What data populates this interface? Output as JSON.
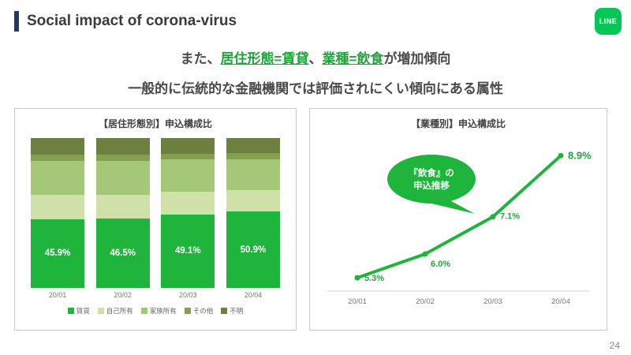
{
  "header": {
    "title": "Social impact of corona-virus",
    "logo_text": "LINE"
  },
  "subtitle": {
    "line1_parts": [
      {
        "text": "また、"
      },
      {
        "text": "居住形態=賃貸"
      },
      {
        "text": "、"
      },
      {
        "text": "業種=飲食"
      },
      {
        "text": "が増加傾向"
      }
    ],
    "line2": "一般的に伝統的な金融機関では評価されにくい傾向にある属性"
  },
  "colors": {
    "accent_navy": "#203864",
    "brand_green": "#06c755",
    "chart_green": "#1fb53c",
    "label_green": "#1fa53a"
  },
  "page_number": "24",
  "chart_data": [
    {
      "type": "bar",
      "stacked": true,
      "title": "【居住形態別】申込構成比",
      "categories": [
        "20/01",
        "20/02",
        "20/03",
        "20/04"
      ],
      "ylim": [
        0,
        100
      ],
      "legend_position": "bottom",
      "series": [
        {
          "name": "賃貸",
          "color": "#1fb53c",
          "values": [
            45.9,
            46.5,
            49.1,
            50.9
          ],
          "labels": [
            "45.9%",
            "46.5%",
            "49.1%",
            "50.9%"
          ]
        },
        {
          "name": "自己所有",
          "color": "#cfe0a8",
          "values": [
            16.0,
            15.5,
            15.0,
            14.5
          ]
        },
        {
          "name": "家族所有",
          "color": "#a5c878",
          "values": [
            23.0,
            23.0,
            21.5,
            20.5
          ]
        },
        {
          "name": "その他",
          "color": "#84a04f",
          "values": [
            4.0,
            4.0,
            4.0,
            4.0
          ]
        },
        {
          "name": "不明",
          "color": "#6b7f3e",
          "values": [
            11.1,
            11.0,
            10.4,
            10.1
          ]
        }
      ]
    },
    {
      "type": "line",
      "title": "【業種別】申込構成比",
      "categories": [
        "20/01",
        "20/02",
        "20/03",
        "20/04"
      ],
      "values": [
        5.3,
        6.0,
        7.1,
        8.9
      ],
      "labels": [
        "5.3%",
        "6.0%",
        "7.1%",
        "8.9%"
      ],
      "color": "#1fb53c",
      "ylim": [
        5,
        9.5
      ],
      "annotation": {
        "lines": [
          "『飲食』の",
          "申込推移"
        ]
      }
    }
  ]
}
